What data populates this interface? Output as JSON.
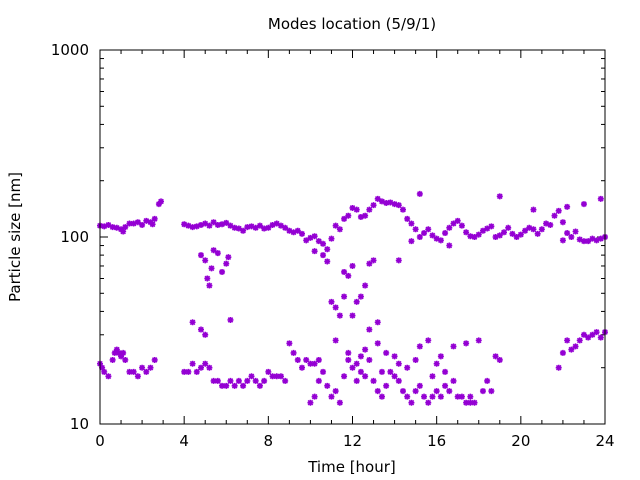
{
  "chart_data": {
    "type": "scatter",
    "title": "Modes location (5/9/1)",
    "xlabel": "Time [hour]",
    "ylabel": "Particle size [nm]",
    "xlim": [
      0,
      24
    ],
    "ylim": [
      10,
      1000
    ],
    "yscale": "log",
    "grid": false,
    "x_ticks": [
      0,
      4,
      8,
      12,
      16,
      20,
      24
    ],
    "x_tick_labels": [
      "0",
      "4",
      "8",
      "12",
      "16",
      "20",
      "24"
    ],
    "y_ticks": [
      10,
      100,
      1000
    ],
    "y_tick_labels": [
      "10",
      "100",
      "1000"
    ],
    "marker": "asterisk",
    "color": "#9400d3",
    "series": [
      {
        "points": [
          [
            0.0,
            115
          ],
          [
            0.2,
            114
          ],
          [
            0.4,
            116
          ],
          [
            0.6,
            113
          ],
          [
            0.8,
            112
          ],
          [
            1.0,
            110
          ],
          [
            1.1,
            107
          ],
          [
            1.2,
            113
          ],
          [
            1.4,
            118
          ],
          [
            1.6,
            118
          ],
          [
            1.8,
            120
          ],
          [
            2.0,
            116
          ],
          [
            2.2,
            122
          ],
          [
            2.4,
            120
          ],
          [
            2.5,
            117
          ],
          [
            2.6,
            125
          ],
          [
            2.8,
            150
          ],
          [
            2.9,
            155
          ],
          [
            4.0,
            117
          ],
          [
            4.2,
            115
          ],
          [
            4.4,
            113
          ],
          [
            4.6,
            114
          ],
          [
            4.8,
            116
          ],
          [
            5.0,
            118
          ],
          [
            5.2,
            115
          ],
          [
            5.4,
            120
          ],
          [
            5.6,
            116
          ],
          [
            5.8,
            117
          ],
          [
            6.0,
            119
          ],
          [
            6.2,
            115
          ],
          [
            6.4,
            112
          ],
          [
            6.6,
            111
          ],
          [
            6.8,
            108
          ],
          [
            7.0,
            113
          ],
          [
            7.2,
            114
          ],
          [
            7.4,
            112
          ],
          [
            7.6,
            115
          ],
          [
            7.8,
            111
          ],
          [
            8.0,
            112
          ],
          [
            8.2,
            116
          ],
          [
            8.4,
            118
          ],
          [
            8.6,
            115
          ],
          [
            8.8,
            112
          ],
          [
            9.0,
            108
          ],
          [
            9.2,
            106
          ],
          [
            9.4,
            108
          ],
          [
            9.6,
            104
          ],
          [
            9.8,
            96
          ],
          [
            10.0,
            99
          ],
          [
            10.2,
            101
          ],
          [
            10.4,
            95
          ],
          [
            10.6,
            92
          ],
          [
            10.8,
            86
          ],
          [
            11.0,
            98
          ],
          [
            11.2,
            115
          ],
          [
            11.4,
            110
          ],
          [
            11.6,
            125
          ],
          [
            11.8,
            130
          ],
          [
            12.0,
            143
          ],
          [
            12.2,
            140
          ],
          [
            12.4,
            128
          ],
          [
            12.6,
            130
          ],
          [
            12.8,
            140
          ],
          [
            13.0,
            148
          ],
          [
            13.2,
            160
          ],
          [
            13.4,
            155
          ],
          [
            13.6,
            152
          ],
          [
            13.8,
            153
          ],
          [
            14.0,
            150
          ],
          [
            14.2,
            148
          ],
          [
            14.4,
            140
          ],
          [
            14.6,
            125
          ],
          [
            14.8,
            118
          ],
          [
            15.0,
            110
          ],
          [
            15.2,
            100
          ],
          [
            15.4,
            105
          ],
          [
            15.6,
            110
          ],
          [
            15.8,
            102
          ],
          [
            16.0,
            98
          ],
          [
            16.2,
            96
          ],
          [
            16.4,
            105
          ],
          [
            16.6,
            112
          ],
          [
            16.8,
            118
          ],
          [
            17.0,
            122
          ],
          [
            17.2,
            115
          ],
          [
            17.4,
            106
          ],
          [
            17.6,
            101
          ],
          [
            17.8,
            100
          ],
          [
            18.0,
            103
          ],
          [
            18.2,
            108
          ],
          [
            18.4,
            111
          ],
          [
            18.6,
            114
          ],
          [
            18.8,
            100
          ],
          [
            19.0,
            102
          ],
          [
            19.2,
            106
          ],
          [
            19.4,
            112
          ],
          [
            19.6,
            104
          ],
          [
            19.8,
            100
          ],
          [
            20.0,
            103
          ],
          [
            20.2,
            108
          ],
          [
            20.4,
            112
          ],
          [
            20.6,
            110
          ],
          [
            20.8,
            104
          ],
          [
            21.0,
            110
          ],
          [
            21.2,
            118
          ],
          [
            21.4,
            116
          ],
          [
            21.6,
            130
          ],
          [
            21.8,
            138
          ],
          [
            22.0,
            120
          ],
          [
            22.2,
            105
          ],
          [
            22.4,
            100
          ],
          [
            22.6,
            107
          ],
          [
            22.8,
            97
          ],
          [
            23.0,
            95
          ],
          [
            23.2,
            95
          ],
          [
            23.4,
            98
          ],
          [
            23.6,
            96
          ],
          [
            23.8,
            98
          ],
          [
            24.0,
            100
          ],
          [
            22.0,
            96
          ],
          [
            23.0,
            150
          ],
          [
            23.8,
            160
          ],
          [
            15.2,
            170
          ],
          [
            19.0,
            165
          ],
          [
            20.6,
            140
          ],
          [
            22.2,
            145
          ],
          [
            14.8,
            95
          ],
          [
            16.6,
            90
          ],
          [
            14.2,
            75
          ]
        ]
      },
      {
        "points": [
          [
            4.8,
            80
          ],
          [
            5.0,
            75
          ],
          [
            5.1,
            60
          ],
          [
            5.2,
            55
          ],
          [
            5.3,
            68
          ],
          [
            5.4,
            85
          ],
          [
            5.6,
            82
          ],
          [
            5.8,
            65
          ],
          [
            6.0,
            72
          ],
          [
            6.1,
            78
          ],
          [
            6.2,
            36
          ],
          [
            4.4,
            35
          ],
          [
            4.8,
            32
          ],
          [
            5.0,
            30
          ],
          [
            10.2,
            84
          ],
          [
            10.6,
            80
          ],
          [
            10.8,
            74
          ],
          [
            11.0,
            45
          ],
          [
            11.2,
            42
          ],
          [
            11.4,
            38
          ],
          [
            11.6,
            65
          ],
          [
            11.8,
            62
          ],
          [
            12.0,
            70
          ],
          [
            12.2,
            45
          ],
          [
            12.4,
            48
          ],
          [
            12.6,
            55
          ],
          [
            12.8,
            72
          ],
          [
            13.0,
            75
          ],
          [
            13.2,
            35
          ],
          [
            12.0,
            38
          ],
          [
            11.6,
            48
          ],
          [
            12.8,
            32
          ]
        ]
      },
      {
        "points": [
          [
            0.0,
            21
          ],
          [
            0.1,
            20
          ],
          [
            0.2,
            19
          ],
          [
            0.4,
            18
          ],
          [
            0.6,
            22
          ],
          [
            0.7,
            24
          ],
          [
            0.8,
            25
          ],
          [
            0.9,
            24
          ],
          [
            1.0,
            23
          ],
          [
            1.1,
            24
          ],
          [
            1.2,
            22
          ],
          [
            1.4,
            19
          ],
          [
            1.6,
            19
          ],
          [
            1.8,
            18
          ],
          [
            2.0,
            20
          ],
          [
            2.2,
            19
          ],
          [
            2.4,
            20
          ],
          [
            2.6,
            22
          ],
          [
            4.0,
            19
          ],
          [
            4.2,
            19
          ],
          [
            4.4,
            21
          ],
          [
            4.6,
            19
          ],
          [
            4.8,
            20
          ],
          [
            5.0,
            21
          ],
          [
            5.2,
            20
          ],
          [
            5.4,
            17
          ],
          [
            5.6,
            17
          ],
          [
            5.8,
            16
          ],
          [
            6.0,
            16
          ],
          [
            6.2,
            17
          ],
          [
            6.4,
            16
          ],
          [
            6.6,
            17
          ],
          [
            6.8,
            16
          ],
          [
            7.0,
            17
          ],
          [
            7.2,
            18
          ],
          [
            7.4,
            17
          ],
          [
            7.6,
            16
          ],
          [
            7.8,
            17
          ],
          [
            8.0,
            19
          ],
          [
            8.2,
            18
          ],
          [
            8.4,
            18
          ],
          [
            8.6,
            18
          ],
          [
            8.8,
            17
          ],
          [
            9.0,
            27
          ],
          [
            9.2,
            24
          ],
          [
            9.4,
            22
          ],
          [
            9.6,
            20
          ],
          [
            9.8,
            22
          ],
          [
            10.0,
            21
          ],
          [
            10.2,
            21
          ],
          [
            10.4,
            22
          ],
          [
            10.6,
            19
          ],
          [
            10.8,
            16
          ],
          [
            11.0,
            14
          ],
          [
            11.2,
            15
          ],
          [
            11.4,
            13
          ],
          [
            11.6,
            18
          ],
          [
            11.8,
            22
          ],
          [
            12.0,
            20
          ],
          [
            12.2,
            17
          ],
          [
            12.4,
            19
          ],
          [
            12.6,
            18
          ],
          [
            12.8,
            22
          ],
          [
            13.0,
            17
          ],
          [
            13.2,
            15
          ],
          [
            13.4,
            14
          ],
          [
            13.6,
            16
          ],
          [
            13.8,
            19
          ],
          [
            14.0,
            18
          ],
          [
            14.2,
            17
          ],
          [
            14.4,
            15
          ],
          [
            14.6,
            14
          ],
          [
            14.8,
            13
          ],
          [
            15.0,
            15
          ],
          [
            15.2,
            16
          ],
          [
            15.4,
            14
          ],
          [
            15.6,
            13
          ],
          [
            15.8,
            14
          ],
          [
            16.0,
            15
          ],
          [
            16.2,
            14
          ],
          [
            16.4,
            16
          ],
          [
            16.6,
            15
          ],
          [
            16.8,
            17
          ],
          [
            17.0,
            14
          ],
          [
            17.2,
            14
          ],
          [
            17.4,
            13
          ],
          [
            17.6,
            13
          ],
          [
            17.8,
            13
          ],
          [
            18.0,
            28
          ],
          [
            18.2,
            15
          ],
          [
            18.4,
            17
          ],
          [
            18.6,
            15
          ],
          [
            18.8,
            23
          ],
          [
            19.0,
            22
          ],
          [
            10.0,
            13
          ],
          [
            10.2,
            14
          ],
          [
            10.4,
            17
          ],
          [
            12.4,
            23
          ],
          [
            13.2,
            27
          ],
          [
            13.6,
            24
          ],
          [
            14.2,
            21
          ],
          [
            15.6,
            28
          ],
          [
            15.8,
            18
          ],
          [
            16.2,
            23
          ],
          [
            16.8,
            26
          ],
          [
            17.4,
            27
          ],
          [
            17.6,
            14
          ],
          [
            11.2,
            28
          ],
          [
            11.8,
            24
          ],
          [
            12.2,
            21
          ],
          [
            12.6,
            25
          ],
          [
            13.4,
            19
          ],
          [
            14.0,
            23
          ],
          [
            14.6,
            20
          ],
          [
            15.0,
            22
          ],
          [
            16.0,
            21
          ],
          [
            16.4,
            19
          ],
          [
            15.2,
            26
          ],
          [
            21.8,
            20
          ],
          [
            22.0,
            24
          ],
          [
            22.2,
            28
          ],
          [
            22.4,
            25
          ],
          [
            22.6,
            26
          ],
          [
            22.8,
            28
          ],
          [
            23.0,
            30
          ],
          [
            23.2,
            29
          ],
          [
            23.4,
            30
          ],
          [
            23.6,
            31
          ],
          [
            23.8,
            29
          ],
          [
            24.0,
            31
          ]
        ]
      }
    ]
  }
}
